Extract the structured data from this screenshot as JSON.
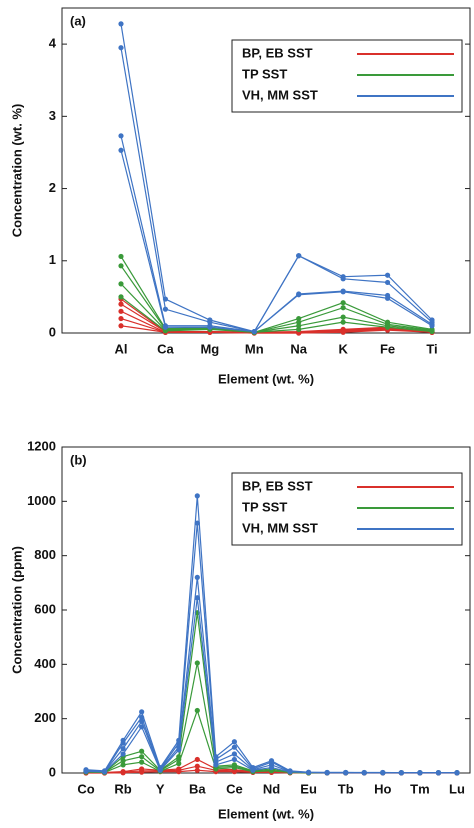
{
  "chart_data": [
    {
      "type": "line",
      "panel_label": "(a)",
      "x_label": "Element (wt. %)",
      "y_label": "Concentration (wt. %)",
      "categories": [
        "Al",
        "Ca",
        "Mg",
        "Mn",
        "Na",
        "K",
        "Fe",
        "Ti"
      ],
      "ylim": [
        0,
        4.5
      ],
      "yticks": [
        0,
        1,
        2,
        3,
        4
      ],
      "legend": "upper right",
      "series": [
        {
          "name": "BP, EB SST",
          "color": "#d9302b",
          "samples": [
            [
              0.47,
              0.02,
              0.02,
              0.01,
              0.02,
              0.05,
              0.08,
              0.02
            ],
            [
              0.4,
              0.02,
              0.02,
              0.01,
              0.01,
              0.04,
              0.07,
              0.02
            ],
            [
              0.3,
              0.01,
              0.01,
              0.01,
              0.01,
              0.03,
              0.06,
              0.01
            ],
            [
              0.2,
              0.01,
              0.01,
              0,
              0,
              0.02,
              0.05,
              0.01
            ],
            [
              0.1,
              0.01,
              0.01,
              0,
              0,
              0.01,
              0.04,
              0.01
            ]
          ]
        },
        {
          "name": "TP SST",
          "color": "#3a9a3a",
          "samples": [
            [
              1.06,
              0.06,
              0.08,
              0.01,
              0.2,
              0.42,
              0.15,
              0.05
            ],
            [
              0.93,
              0.05,
              0.07,
              0.01,
              0.15,
              0.35,
              0.12,
              0.04
            ],
            [
              0.68,
              0.04,
              0.06,
              0.01,
              0.1,
              0.22,
              0.1,
              0.03
            ],
            [
              0.5,
              0.03,
              0.05,
              0.01,
              0.05,
              0.15,
              0.08,
              0.02
            ]
          ]
        },
        {
          "name": "VH, MM SST",
          "color": "#3f74c4",
          "samples": [
            [
              4.28,
              0.47,
              0.18,
              0.02,
              1.07,
              0.78,
              0.8,
              0.18
            ],
            [
              3.95,
              0.33,
              0.15,
              0.02,
              1.07,
              0.75,
              0.7,
              0.15
            ],
            [
              2.73,
              0.1,
              0.1,
              0.02,
              0.54,
              0.58,
              0.52,
              0.12
            ],
            [
              2.53,
              0.08,
              0.08,
              0.02,
              0.53,
              0.57,
              0.48,
              0.1
            ]
          ]
        }
      ]
    },
    {
      "type": "line",
      "panel_label": "(b)",
      "x_label": "Element (wt. %)",
      "y_label": "Concentration (ppm)",
      "categories": [
        "Co",
        null,
        "Rb",
        null,
        "Y",
        null,
        "Ba",
        null,
        "Ce",
        null,
        "Nd",
        null,
        "Eu",
        null,
        "Tb",
        null,
        "Ho",
        null,
        "Tm",
        null,
        "Lu"
      ],
      "ylim": [
        0,
        1200
      ],
      "yticks": [
        0,
        200,
        400,
        600,
        800,
        1000,
        1200
      ],
      "legend": "upper right",
      "series": [
        {
          "name": "BP, EB SST",
          "color": "#d9302b",
          "samples": [
            [
              2,
              2,
              5,
              15,
              10,
              15,
              50,
              15,
              12,
              5,
              5,
              2,
              1,
              1,
              1,
              1,
              1,
              1,
              1,
              1,
              1
            ],
            [
              1,
              1,
              3,
              8,
              8,
              10,
              25,
              10,
              8,
              3,
              3,
              1,
              1,
              1,
              1,
              1,
              1,
              1,
              1,
              1,
              1
            ],
            [
              0,
              0,
              1,
              3,
              5,
              5,
              10,
              5,
              5,
              2,
              2,
              1,
              0,
              0,
              0,
              0,
              0,
              0,
              0,
              0,
              0
            ]
          ]
        },
        {
          "name": "TP  SST",
          "color": "#3a9a3a",
          "samples": [
            [
              5,
              3,
              60,
              80,
              10,
              60,
              590,
              25,
              30,
              8,
              15,
              3,
              1,
              1,
              1,
              1,
              1,
              1,
              1,
              1,
              1
            ],
            [
              4,
              3,
              45,
              60,
              8,
              50,
              405,
              20,
              25,
              6,
              10,
              2,
              1,
              1,
              1,
              1,
              1,
              1,
              1,
              1,
              1
            ],
            [
              3,
              2,
              30,
              40,
              6,
              35,
              230,
              15,
              20,
              5,
              8,
              2,
              1,
              1,
              1,
              1,
              1,
              1,
              1,
              1,
              1
            ]
          ]
        },
        {
          "name": "VH, MM SST",
          "color": "#3f74c4",
          "samples": [
            [
              12,
              8,
              120,
              225,
              20,
              120,
              1020,
              60,
              115,
              20,
              45,
              8,
              3,
              2,
              2,
              2,
              2,
              1,
              1,
              1,
              1
            ],
            [
              10,
              6,
              110,
              205,
              15,
              110,
              920,
              50,
              95,
              15,
              40,
              6,
              2,
              2,
              2,
              1,
              1,
              1,
              1,
              1,
              1
            ],
            [
              8,
              5,
              90,
              190,
              12,
              95,
              720,
              40,
              70,
              12,
              30,
              5,
              2,
              1,
              1,
              1,
              1,
              1,
              1,
              1,
              1
            ],
            [
              6,
              4,
              70,
              170,
              10,
              85,
              645,
              30,
              50,
              10,
              20,
              4,
              2,
              1,
              1,
              1,
              1,
              1,
              1,
              1,
              1
            ]
          ]
        }
      ]
    }
  ]
}
